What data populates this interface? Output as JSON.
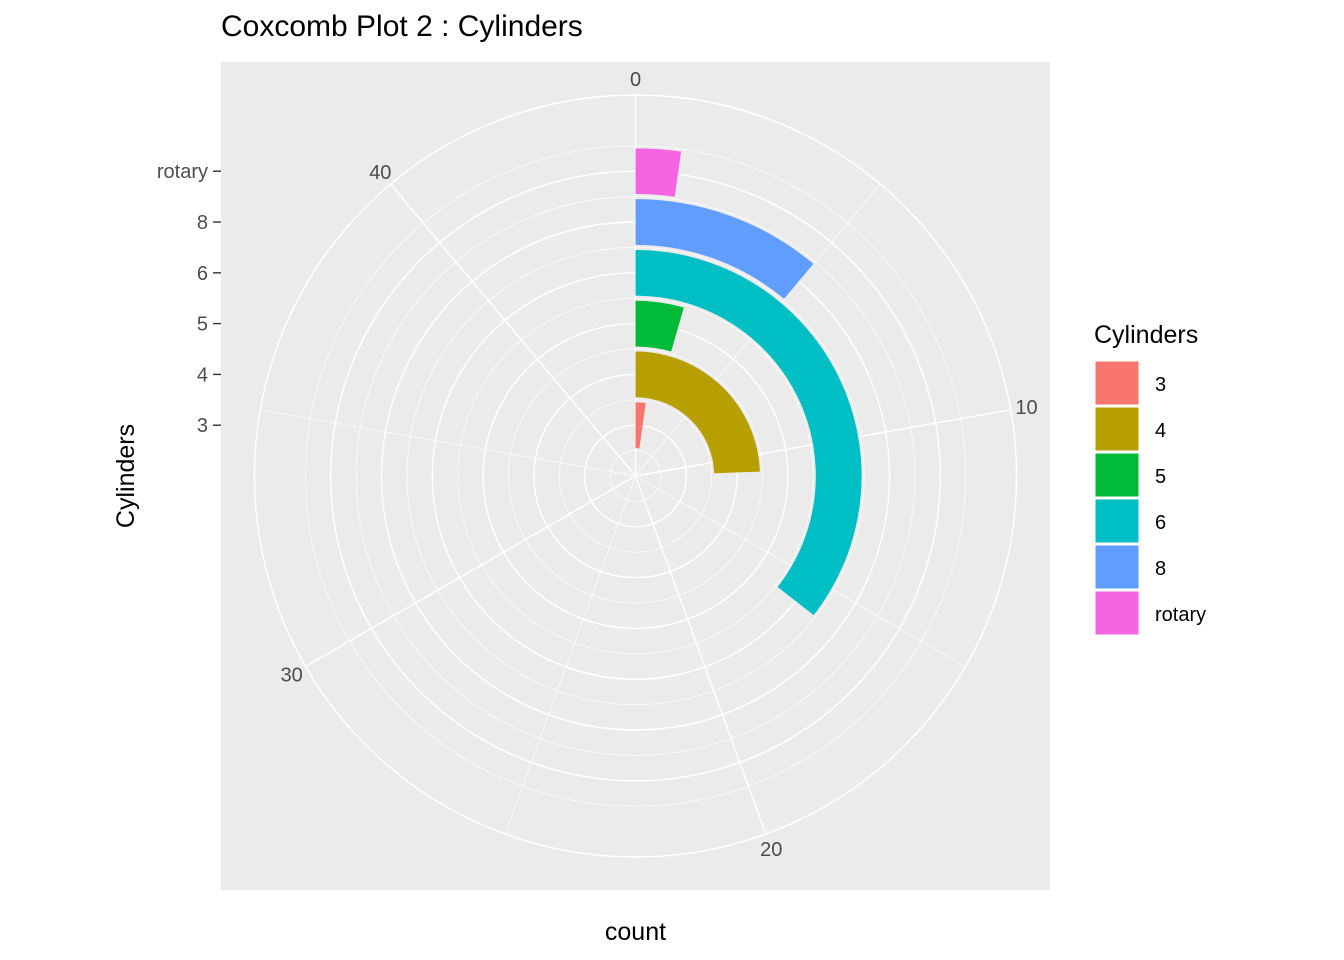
{
  "chart_data": {
    "type": "pie",
    "coord": "polar",
    "title": "Coxcomb Plot 2 : Cylinders",
    "xlabel": "count",
    "ylabel": "Cylinders",
    "categories": [
      "3",
      "4",
      "5",
      "6",
      "8",
      "rotary"
    ],
    "values": [
      1,
      11,
      2,
      16,
      5,
      1
    ],
    "theta_ticks": [
      "0",
      "10",
      "20",
      "30",
      "40"
    ],
    "theta_range": [
      0,
      45
    ],
    "grid": true,
    "legend": {
      "title": "Cylinders",
      "placement": "right",
      "entries": [
        {
          "label": "3",
          "color": "#F8766D"
        },
        {
          "label": "4",
          "color": "#B79F00"
        },
        {
          "label": "5",
          "color": "#00BA38"
        },
        {
          "label": "6",
          "color": "#00BFC4"
        },
        {
          "label": "8",
          "color": "#619CFF"
        },
        {
          "label": "rotary",
          "color": "#F564E3"
        }
      ]
    }
  }
}
